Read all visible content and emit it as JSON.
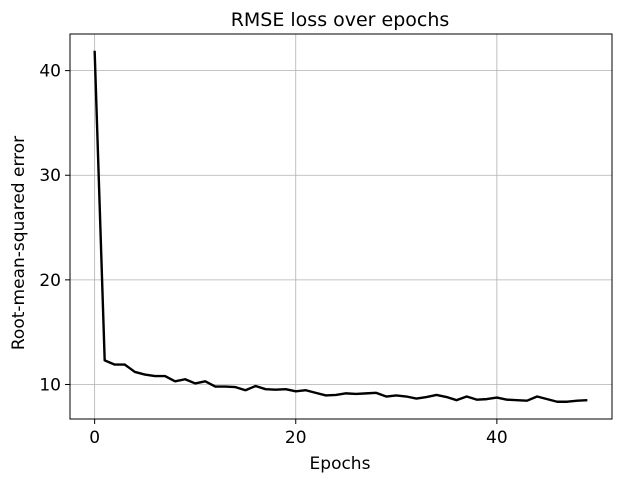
{
  "chart_data": {
    "type": "line",
    "title": "RMSE loss over epochs",
    "xlabel": "Epochs",
    "ylabel": "Root-mean-squared error",
    "xlim": [
      -2.45,
      51.45
    ],
    "ylim": [
      6.7,
      43.5
    ],
    "xticks": [
      0,
      20,
      40
    ],
    "yticks": [
      10,
      20,
      30,
      40
    ],
    "grid": true,
    "series": [
      {
        "color": "#000000",
        "x": [
          0,
          1,
          2,
          3,
          4,
          5,
          6,
          7,
          8,
          9,
          10,
          11,
          12,
          13,
          14,
          15,
          16,
          17,
          18,
          19,
          20,
          21,
          22,
          23,
          24,
          25,
          26,
          27,
          28,
          29,
          30,
          31,
          32,
          33,
          34,
          35,
          36,
          37,
          38,
          39,
          40,
          41,
          42,
          43,
          44,
          45,
          46,
          47,
          48,
          49
        ],
        "values": [
          41.9,
          12.3,
          11.9,
          11.9,
          11.2,
          10.95,
          10.8,
          10.8,
          10.3,
          10.5,
          10.1,
          10.3,
          9.8,
          9.8,
          9.75,
          9.45,
          9.85,
          9.55,
          9.5,
          9.55,
          9.35,
          9.45,
          9.2,
          8.95,
          9.0,
          9.15,
          9.1,
          9.15,
          9.2,
          8.85,
          8.95,
          8.85,
          8.65,
          8.8,
          9.0,
          8.8,
          8.5,
          8.85,
          8.55,
          8.6,
          8.75,
          8.55,
          8.5,
          8.45,
          8.85,
          8.6,
          8.35,
          8.35,
          8.45,
          8.5
        ]
      }
    ]
  }
}
